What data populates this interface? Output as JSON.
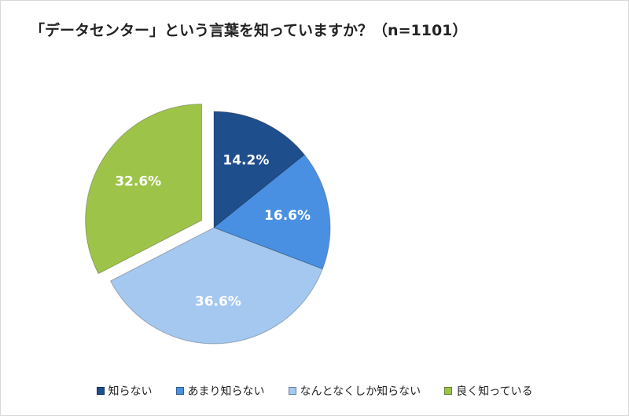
{
  "chart_data": {
    "type": "pie",
    "title": "「データセンター」という言葉を知っていますか？（n=1101）",
    "categories": [
      "知らない",
      "あまり知らない",
      "なんとなくしか知らない",
      "良く知っている"
    ],
    "values": [
      14.2,
      16.6,
      36.6,
      32.6
    ],
    "data_labels": [
      "14.2%",
      "16.6%",
      "36.6%",
      "32.6%"
    ],
    "colors": [
      "#1f4e8c",
      "#4a90e2",
      "#a4c8f0",
      "#9dc449"
    ],
    "legend_position": "bottom",
    "exploded": [
      "良く知っている"
    ]
  }
}
